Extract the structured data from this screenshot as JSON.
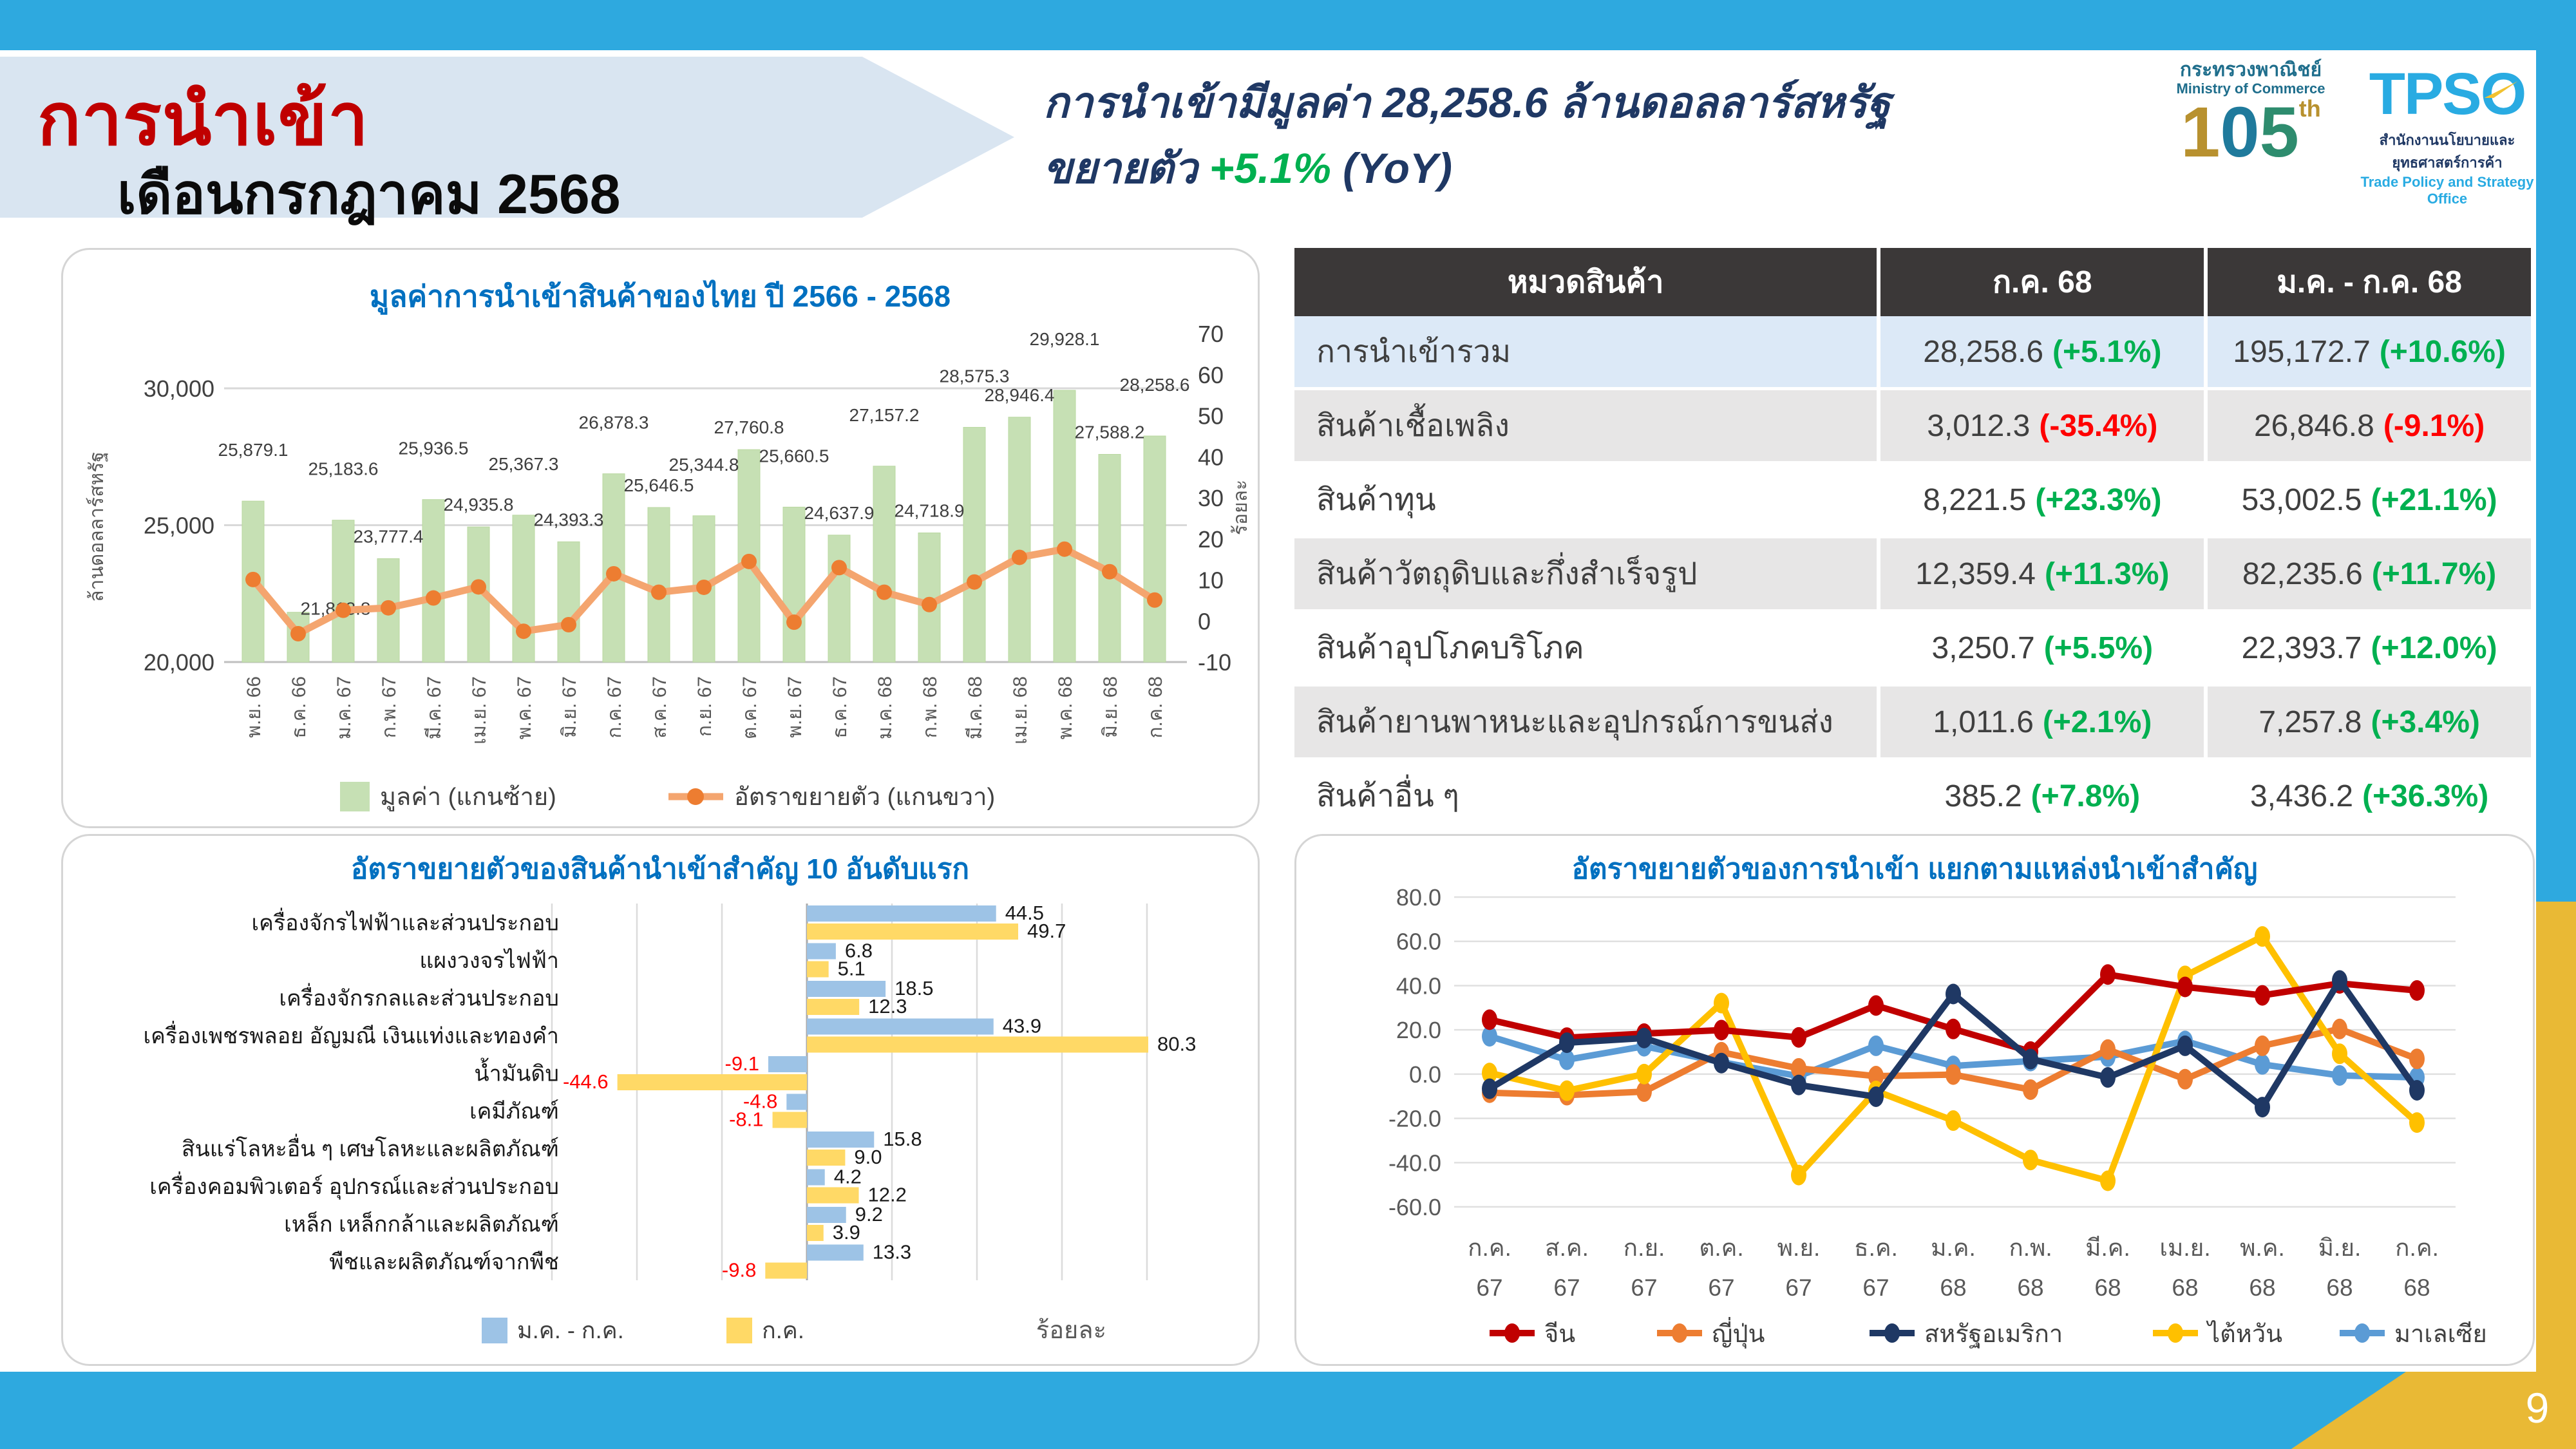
{
  "slide": {
    "title": "การนำเข้า",
    "subtitle_month": "เดือนกรกฎาคม 2568",
    "headline": {
      "line1": "การนำเข้ามีมูลค่า 28,258.6 ล้านดอลลาร์สหรัฐ",
      "line2_prefix": "ขยายตัว",
      "growth": "+5.1%",
      "line2_suffix": "(YoY)"
    },
    "page_number": "9"
  },
  "logos": {
    "moc_th": "กระทรวงพาณิชย์",
    "moc_en": "Ministry of Commerce",
    "moc_mark_1": "1",
    "moc_mark_0": "0",
    "moc_mark_5": "5",
    "moc_mark_th": "th",
    "tpso_word": "TPS",
    "tpso_o": "O",
    "tpso_th": "สำนักงานนโยบายและยุทธศาสตร์การค้า",
    "tpso_en": "Trade Policy and Strategy Office"
  },
  "table": {
    "headers": [
      "หมวดสินค้า",
      "ก.ค. 68",
      "ม.ค. - ก.ค.  68"
    ],
    "rows": [
      {
        "name": "การนำเข้ารวม",
        "jul": "28,258.6",
        "jul_pct": "(+5.1%)",
        "jul_neg": false,
        "ytd": "195,172.7",
        "ytd_pct": "(+10.6%)",
        "ytd_neg": false,
        "bg": "#DCE9F7"
      },
      {
        "name": "สินค้าเชื้อเพลิง",
        "jul": "3,012.3",
        "jul_pct": "(-35.4%)",
        "jul_neg": true,
        "ytd": "26,846.8",
        "ytd_pct": "(-9.1%)",
        "ytd_neg": true,
        "bg": "#E7E6E6"
      },
      {
        "name": "สินค้าทุน",
        "jul": "8,221.5",
        "jul_pct": "(+23.3%)",
        "jul_neg": false,
        "ytd": "53,002.5",
        "ytd_pct": "(+21.1%)",
        "ytd_neg": false,
        "bg": "#FFFFFF"
      },
      {
        "name": "สินค้าวัตถุดิบและกึ่งสำเร็จรูป",
        "jul": "12,359.4",
        "jul_pct": "(+11.3%)",
        "jul_neg": false,
        "ytd": "82,235.6",
        "ytd_pct": "(+11.7%)",
        "ytd_neg": false,
        "bg": "#E7E6E6"
      },
      {
        "name": "สินค้าอุปโภคบริโภค",
        "jul": "3,250.7",
        "jul_pct": "(+5.5%)",
        "jul_neg": false,
        "ytd": "22,393.7",
        "ytd_pct": "(+12.0%)",
        "ytd_neg": false,
        "bg": "#FFFFFF"
      },
      {
        "name": "สินค้ายานพาหนะและอุปกรณ์การขนส่ง",
        "jul": "1,011.6",
        "jul_pct": "(+2.1%)",
        "jul_neg": false,
        "ytd": "7,257.8",
        "ytd_pct": "(+3.4%)",
        "ytd_neg": false,
        "bg": "#E7E6E6"
      },
      {
        "name": "สินค้าอื่น ๆ",
        "jul": "385.2",
        "jul_pct": "(+7.8%)",
        "jul_neg": false,
        "ytd": "3,436.2",
        "ytd_pct": "(+36.3%)",
        "ytd_neg": false,
        "bg": "#FFFFFF"
      }
    ]
  },
  "chart_data": [
    {
      "id": "import-value-monthly",
      "type": "bar",
      "title": "มูลค่าการนำเข้าสินค้าของไทย ปี 2566 - 2568",
      "categories": [
        "พ.ย. 66",
        "ธ.ค. 66",
        "ม.ค. 67",
        "ก.พ. 67",
        "มี.ค. 67",
        "เม.ย. 67",
        "พ.ค. 67",
        "มิ.ย. 67",
        "ก.ค. 67",
        "ส.ค. 67",
        "ก.ย. 67",
        "ต.ค. 67",
        "พ.ย. 67",
        "ธ.ค. 67",
        "ม.ค. 68",
        "ก.พ. 68",
        "มี.ค. 68",
        "เม.ย. 68",
        "พ.ค. 68",
        "มิ.ย. 68",
        "ก.ค. 68"
      ],
      "series": [
        {
          "name": "มูลค่า (แกนซ้าย)",
          "kind": "bar",
          "axis": "left",
          "color": "#C6E0B4",
          "values": [
            25879.1,
            21818.8,
            25183.6,
            23777.4,
            25936.5,
            24935.8,
            25367.3,
            24393.3,
            26878.3,
            25646.5,
            25344.8,
            27760.8,
            25660.5,
            24637.9,
            27157.2,
            24718.9,
            28575.3,
            28946.4,
            29928.1,
            27588.2,
            28258.6
          ],
          "labels": [
            "25,879.1",
            "21,818.8",
            "25,183.6",
            "23,777.4",
            "25,936.5",
            "24,935.8",
            "25,367.3",
            "24,393.3",
            "26,878.3",
            "25,646.5",
            "25,344.8",
            "27,760.8",
            "25,660.5",
            "24,637.9",
            "27,157.2",
            "24,718.9",
            "28,575.3",
            "28,946.4",
            "29,928.1",
            "27,588.2",
            "28,258.6"
          ]
        },
        {
          "name": "อัตราขยายตัว (แกนขวา)",
          "kind": "line",
          "axis": "right",
          "color": "#ED7D31",
          "line_color": "#F4A56F",
          "values": [
            10.1,
            -3.1,
            2.6,
            3.2,
            5.6,
            8.3,
            -2.5,
            -0.9,
            11.5,
            7.0,
            8.2,
            14.5,
            -0.3,
            13.0,
            7.0,
            4.0,
            9.5,
            15.5,
            17.5,
            12.0,
            5.1
          ]
        }
      ],
      "ylabel_left": "ล้านดอลลาร์สหรัฐ",
      "ylabel_right": "ร้อยละ",
      "yticks_left": [
        [
          "20,000",
          20000
        ],
        [
          "25,000",
          25000
        ],
        [
          "30,000",
          30000
        ]
      ],
      "yticks_right": [
        70,
        60,
        50,
        40,
        30,
        20,
        10,
        0,
        -10
      ],
      "ylim_left": [
        20000,
        30000
      ],
      "ylim_right": [
        -10,
        70
      ]
    },
    {
      "id": "top10-import-growth",
      "type": "bar",
      "title": "อัตราขยายตัวของสินค้านำเข้าสำคัญ 10 อันดับแรก",
      "unit_label": "ร้อยละ",
      "categories": [
        "เครื่องจักรไฟฟ้าและส่วนประกอบ",
        "แผงวงจรไฟฟ้า",
        "เครื่องจักรกลและส่วนประกอบ",
        "เครื่องเพชรพลอย อัญมณี เงินแท่งและทองคำ",
        "น้ำมันดิบ",
        "เคมีภัณฑ์",
        "สินแร่โลหะอื่น ๆ เศษโลหะและผลิตภัณฑ์",
        "เครื่องคอมพิวเตอร์ อุปกรณ์และส่วนประกอบ",
        "เหล็ก เหล็กกล้าและผลิตภัณฑ์",
        "พืชและผลิตภัณฑ์จากพืช"
      ],
      "series": [
        {
          "name": "ม.ค. - ก.ค.",
          "color": "#9DC3E6",
          "values": [
            44.5,
            6.8,
            18.5,
            43.9,
            -9.1,
            -4.8,
            15.8,
            4.2,
            9.2,
            13.3
          ]
        },
        {
          "name": "ก.ค.",
          "color": "#FFD966",
          "values": [
            49.7,
            5.1,
            12.3,
            80.3,
            -44.6,
            -8.1,
            9.0,
            12.2,
            3.9,
            -9.8
          ]
        }
      ],
      "xlim": [
        -60,
        100
      ]
    },
    {
      "id": "import-growth-by-source",
      "type": "line",
      "title": "อัตราขยายตัวของการนำเข้า แยกตามแหล่งนำเข้าสำคัญ",
      "categories_month": [
        "ก.ค.",
        "ส.ค.",
        "ก.ย.",
        "ต.ค.",
        "พ.ย.",
        "ธ.ค.",
        "ม.ค.",
        "ก.พ.",
        "มี.ค.",
        "เม.ย.",
        "พ.ค.",
        "มิ.ย.",
        "ก.ค."
      ],
      "categories_year": [
        "67",
        "67",
        "67",
        "67",
        "67",
        "67",
        "68",
        "68",
        "68",
        "68",
        "68",
        "68",
        "68"
      ],
      "yticks": [
        "80.0",
        "60.0",
        "40.0",
        "20.0",
        "0.0",
        "-20.0",
        "-40.0",
        "-60.0"
      ],
      "ylim": [
        -60,
        80
      ],
      "series": [
        {
          "name": "จีน",
          "color": "#C00000",
          "values": [
            24.6,
            16.5,
            18.3,
            19.9,
            16.6,
            31.0,
            20.4,
            10.2,
            45.0,
            39.4,
            35.6,
            41.0,
            37.8
          ]
        },
        {
          "name": "ญี่ปุ่น",
          "color": "#ED7D31",
          "values": [
            -8.4,
            -9.5,
            -7.9,
            9.9,
            2.6,
            -0.9,
            -0.2,
            -7.0,
            11.1,
            -2.3,
            12.8,
            20.4,
            6.9
          ]
        },
        {
          "name": "สหรัฐอเมริกา",
          "color": "#1F3864",
          "values": [
            -6.6,
            14.2,
            16.3,
            5.0,
            -4.9,
            -10.2,
            36.2,
            6.8,
            -1.5,
            12.8,
            -14.9,
            42.3,
            -7.3
          ]
        },
        {
          "name": "ไต้หวัน",
          "color": "#FFC000",
          "values": [
            0.5,
            -7.5,
            0.0,
            32.1,
            -45.6,
            -7.6,
            -21.0,
            -38.8,
            -48.2,
            44.4,
            62.2,
            9.2,
            -21.9
          ]
        },
        {
          "name": "มาเลเซีย",
          "color": "#5B9BD5",
          "values": [
            17.1,
            6.5,
            12.6,
            5.4,
            -0.9,
            12.8,
            3.7,
            5.9,
            7.9,
            15.0,
            4.4,
            -0.6,
            -1.5
          ]
        }
      ]
    }
  ],
  "colors": {
    "accent_blue": "#2EA9DF",
    "accent_yellow": "#E9B935",
    "title_red": "#C00000",
    "navy": "#1F3864",
    "green": "#00B050",
    "negative_red": "#FF0000",
    "chart_title_blue": "#0070C0",
    "table_header_bg": "#3B3838",
    "grid_gray": "#D9D9D9"
  }
}
